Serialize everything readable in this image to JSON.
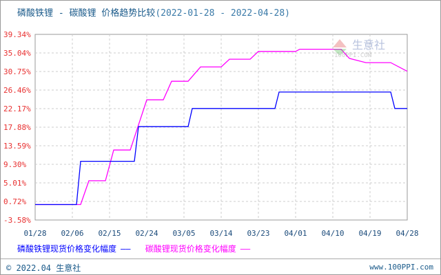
{
  "chart_data": {
    "type": "line",
    "title": "磷酸铁锂 - 碳酸锂 价格趋势比较",
    "date_range": "(2022-01-28 - 2022-04-28)",
    "xlabel": "",
    "ylabel": "",
    "x_ticks": [
      "01/28",
      "02/06",
      "02/15",
      "02/24",
      "03/05",
      "03/14",
      "03/23",
      "04/01",
      "04/10",
      "04/19",
      "04/28"
    ],
    "y_ticks": [
      "39.34%",
      "35.04%",
      "30.75%",
      "26.46%",
      "22.17%",
      "17.88%",
      "13.59%",
      "9.30%",
      "5.01%",
      "0.72%",
      "-3.58%"
    ],
    "ylim": [
      -3.58,
      39.34
    ],
    "xlim": [
      "2022-01-28",
      "2022-04-28"
    ],
    "grid": true,
    "legend_position": "bottom",
    "series": [
      {
        "name": "磷酸铁锂现货价格变化幅度",
        "color": "#0000ff",
        "points": [
          [
            "2022-01-28",
            0
          ],
          [
            "2022-02-07",
            0
          ],
          [
            "2022-02-08",
            10.0
          ],
          [
            "2022-02-21",
            10.0
          ],
          [
            "2022-02-22",
            18.0
          ],
          [
            "2022-03-06",
            18.0
          ],
          [
            "2022-03-07",
            22.2
          ],
          [
            "2022-03-27",
            22.2
          ],
          [
            "2022-03-28",
            26.0
          ],
          [
            "2022-04-24",
            26.0
          ],
          [
            "2022-04-25",
            22.2
          ],
          [
            "2022-04-28",
            22.2
          ]
        ]
      },
      {
        "name": "碳酸锂现货价格变化幅度",
        "color": "#ff00ff",
        "points": [
          [
            "2022-01-28",
            0
          ],
          [
            "2022-02-08",
            0
          ],
          [
            "2022-02-10",
            5.5
          ],
          [
            "2022-02-14",
            5.5
          ],
          [
            "2022-02-16",
            12.6
          ],
          [
            "2022-02-20",
            12.6
          ],
          [
            "2022-02-24",
            24.2
          ],
          [
            "2022-02-28",
            24.2
          ],
          [
            "2022-03-02",
            28.5
          ],
          [
            "2022-03-06",
            28.5
          ],
          [
            "2022-03-09",
            31.8
          ],
          [
            "2022-03-14",
            31.8
          ],
          [
            "2022-03-16",
            33.6
          ],
          [
            "2022-03-21",
            33.6
          ],
          [
            "2022-03-23",
            35.4
          ],
          [
            "2022-04-01",
            35.4
          ],
          [
            "2022-04-02",
            35.9
          ],
          [
            "2022-04-12",
            35.9
          ],
          [
            "2022-04-14",
            33.8
          ],
          [
            "2022-04-18",
            32.8
          ],
          [
            "2022-04-24",
            32.8
          ],
          [
            "2022-04-28",
            30.8
          ]
        ]
      }
    ]
  },
  "watermark": {
    "name": "生意社",
    "url": "100PPI.COM"
  },
  "footer": {
    "copyright": "© 2022.04 生意社",
    "site": "www.100PPI.com"
  }
}
